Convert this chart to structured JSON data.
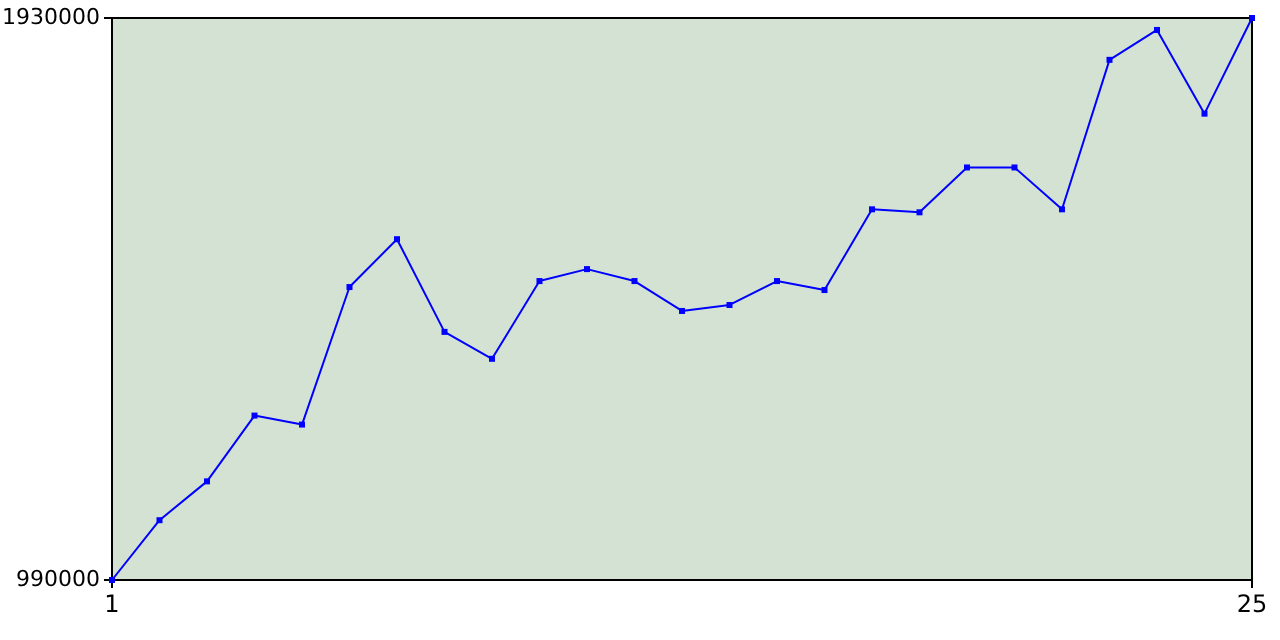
{
  "chart_data": {
    "type": "line",
    "x": [
      1,
      2,
      3,
      4,
      5,
      6,
      7,
      8,
      9,
      10,
      11,
      12,
      13,
      14,
      15,
      16,
      17,
      18,
      19,
      20,
      21,
      22,
      23,
      24,
      25
    ],
    "series": [
      {
        "color": "#0000ff",
        "values": [
          990000,
          1090000,
          1155000,
          1265000,
          1250000,
          1480000,
          1560000,
          1405000,
          1360000,
          1490000,
          1510000,
          1490000,
          1440000,
          1450000,
          1490000,
          1475000,
          1610000,
          1605000,
          1680000,
          1680000,
          1610000,
          1860000,
          1910000,
          1770000,
          1930000
        ]
      }
    ],
    "xlim": [
      1,
      25
    ],
    "ylim": [
      990000,
      1930000
    ],
    "xticks": [
      1,
      25
    ],
    "yticks": [
      990000,
      1930000
    ],
    "grid": false,
    "marker": "square",
    "line_style": "solid"
  }
}
